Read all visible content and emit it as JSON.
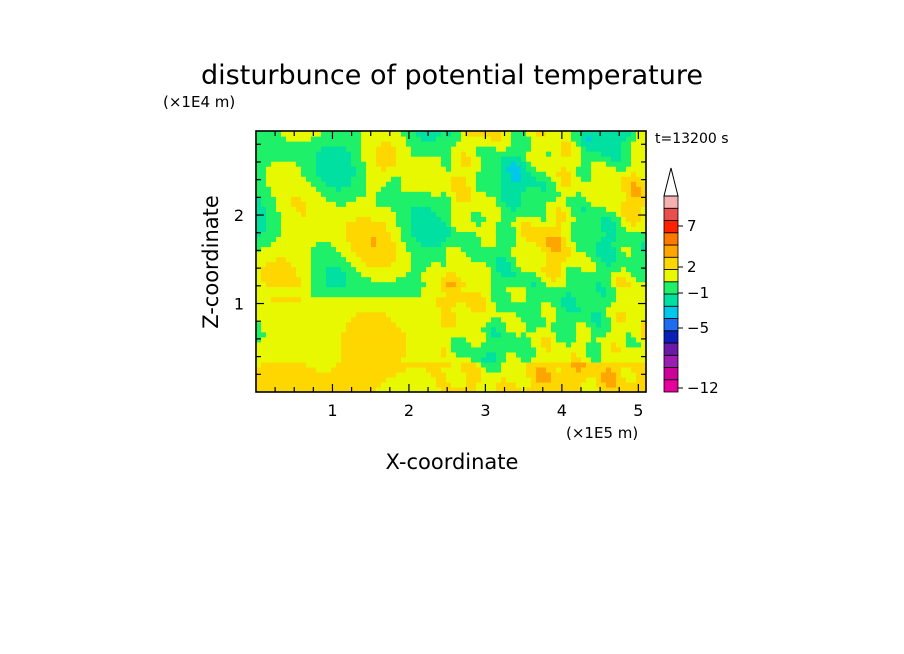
{
  "chart_data": {
    "type": "heatmap",
    "title": "disturbunce of potential temperature",
    "xlabel": "X-coordinate",
    "ylabel": "Z-coordinate",
    "x_unit": "(×1E5 m)",
    "y_unit": "(×1E4 m)",
    "time_label": "t=13200 s",
    "xlim": [
      0,
      5.1
    ],
    "ylim": [
      0,
      2.95
    ],
    "x_ticks": [
      "1",
      "2",
      "3",
      "4",
      "5"
    ],
    "y_ticks": [
      "1",
      "2"
    ],
    "colorbar": {
      "labels": [
        "7",
        "2",
        "−1",
        "−5",
        "−12"
      ],
      "levels": [
        -12,
        -9,
        -7,
        -6,
        -5,
        -4,
        -3,
        -2,
        -1,
        0,
        1,
        2,
        3,
        5,
        7,
        9,
        12
      ],
      "colors": [
        "#e6009c",
        "#cc0099",
        "#9a1fb0",
        "#6b1aa8",
        "#0a1fb5",
        "#1e6cf0",
        "#00c8e8",
        "#00e0a0",
        "#1ff06a",
        "#e8f800",
        "#ffd700",
        "#ffa500",
        "#ff7800",
        "#ff2000",
        "#e85050",
        "#f5b0b0"
      ],
      "extend_max": true
    }
  },
  "colors": {
    "background": "#ffffff",
    "field_base": "#1ff06a",
    "warm_layer": "#e8f800"
  }
}
